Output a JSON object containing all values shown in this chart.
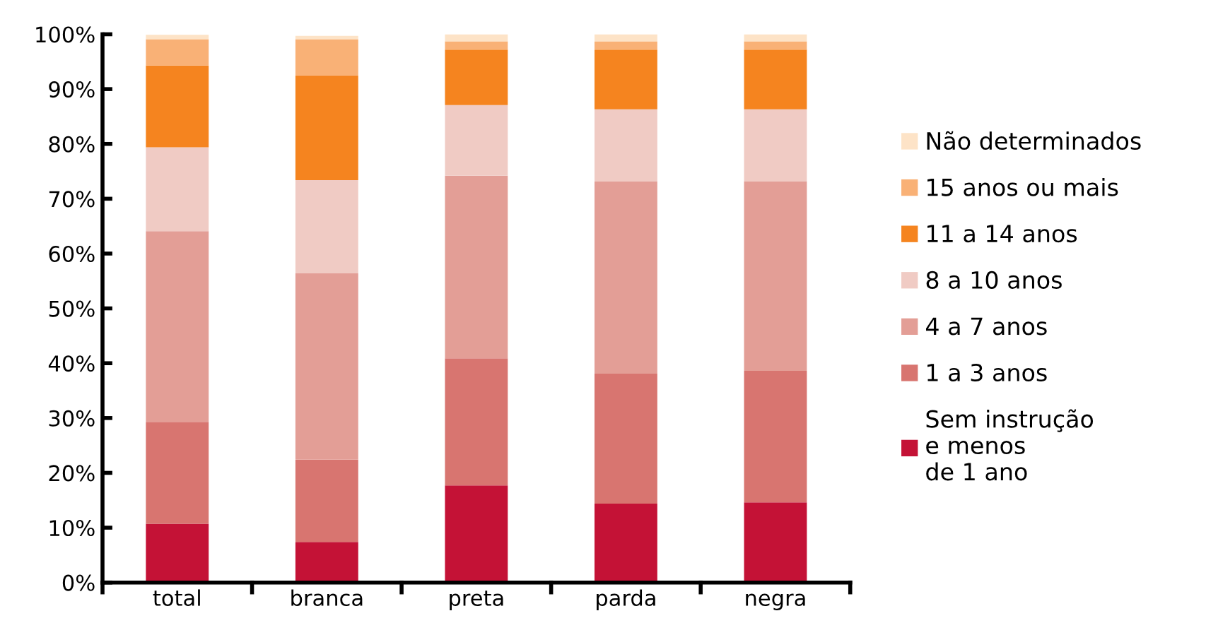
{
  "chart_data": {
    "type": "bar",
    "stacked": true,
    "categories": [
      "total",
      "branca",
      "preta",
      "parda",
      "negra"
    ],
    "series": [
      {
        "name": "Sem instrução\ne menos\nde 1 ano",
        "color": "#c41236",
        "values": [
          10.7,
          7.4,
          17.7,
          14.4,
          14.6
        ]
      },
      {
        "name": "1 a 3 anos",
        "color": "#d87570",
        "values": [
          18.6,
          15.0,
          23.2,
          23.7,
          24.0
        ]
      },
      {
        "name": "4 a 7 anos",
        "color": "#e39e96",
        "values": [
          34.8,
          34.0,
          33.3,
          35.1,
          34.6
        ]
      },
      {
        "name": "8 a 10 anos",
        "color": "#f0cbc4",
        "values": [
          15.3,
          17.0,
          12.9,
          13.1,
          13.1
        ]
      },
      {
        "name": "11 a 14 anos",
        "color": "#f5841f",
        "values": [
          14.9,
          19.1,
          10.1,
          10.9,
          10.9
        ]
      },
      {
        "name": "15 anos ou mais",
        "color": "#f9b176",
        "values": [
          4.8,
          6.6,
          1.5,
          1.5,
          1.5
        ]
      },
      {
        "name": "Não determinados",
        "color": "#fde3c7",
        "values": [
          0.8,
          0.6,
          1.3,
          1.3,
          1.3
        ]
      }
    ],
    "ylim": [
      0,
      100
    ],
    "yticks": [
      {
        "value": 0,
        "label": "0%"
      },
      {
        "value": 10,
        "label": "10%"
      },
      {
        "value": 20,
        "label": "20%"
      },
      {
        "value": 30,
        "label": "30%"
      },
      {
        "value": 40,
        "label": "40%"
      },
      {
        "value": 50,
        "label": "50%"
      },
      {
        "value": 60,
        "label": "60%"
      },
      {
        "value": 70,
        "label": "70%"
      },
      {
        "value": 80,
        "label": "80%"
      },
      {
        "value": 90,
        "label": "90%"
      },
      {
        "value": 100,
        "label": "100%"
      }
    ],
    "grid": false,
    "legend": "right"
  }
}
